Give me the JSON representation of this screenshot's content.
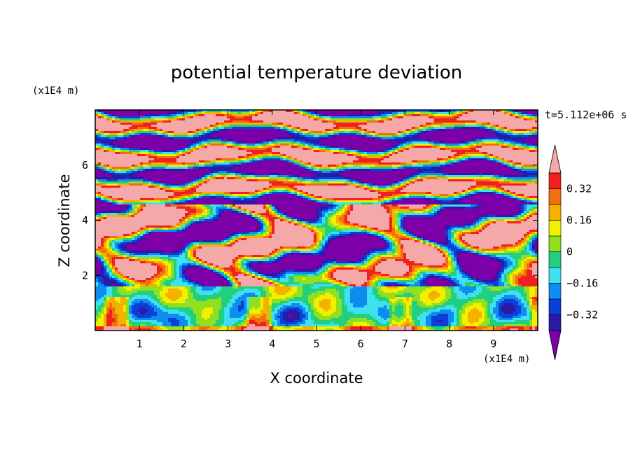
{
  "chart_data": {
    "type": "heatmap",
    "title": "potential temperature deviation",
    "xlabel": "X coordinate",
    "ylabel": "Z coordinate",
    "x_unit": "(x1E4 m)",
    "y_unit": "(x1E4 m)",
    "time_label": "t=5.112e+06 s",
    "xlim": [
      0,
      10
    ],
    "ylim": [
      0,
      8
    ],
    "x_ticks": [
      1,
      2,
      3,
      4,
      5,
      6,
      7,
      8,
      9
    ],
    "y_ticks": [
      2,
      4,
      6
    ],
    "colorbar": {
      "levels": [
        -0.4,
        -0.32,
        -0.24,
        -0.16,
        -0.08,
        0,
        0.08,
        0.16,
        0.24,
        0.32,
        0.4
      ],
      "labels": [
        {
          "value": 0.32,
          "text": "0.32"
        },
        {
          "value": 0.16,
          "text": "0.16"
        },
        {
          "value": 0,
          "text": "0"
        },
        {
          "value": -0.16,
          "text": "−0.16"
        },
        {
          "value": -0.32,
          "text": "−0.32"
        }
      ],
      "colors": [
        "#7b00a8",
        "#2a1aa6",
        "#0a40d8",
        "#0f8cf0",
        "#3fe0f0",
        "#20d080",
        "#90e020",
        "#f0f000",
        "#f5b000",
        "#f07010",
        "#f02020",
        "#f5a8a8"
      ],
      "extend": "both"
    }
  }
}
